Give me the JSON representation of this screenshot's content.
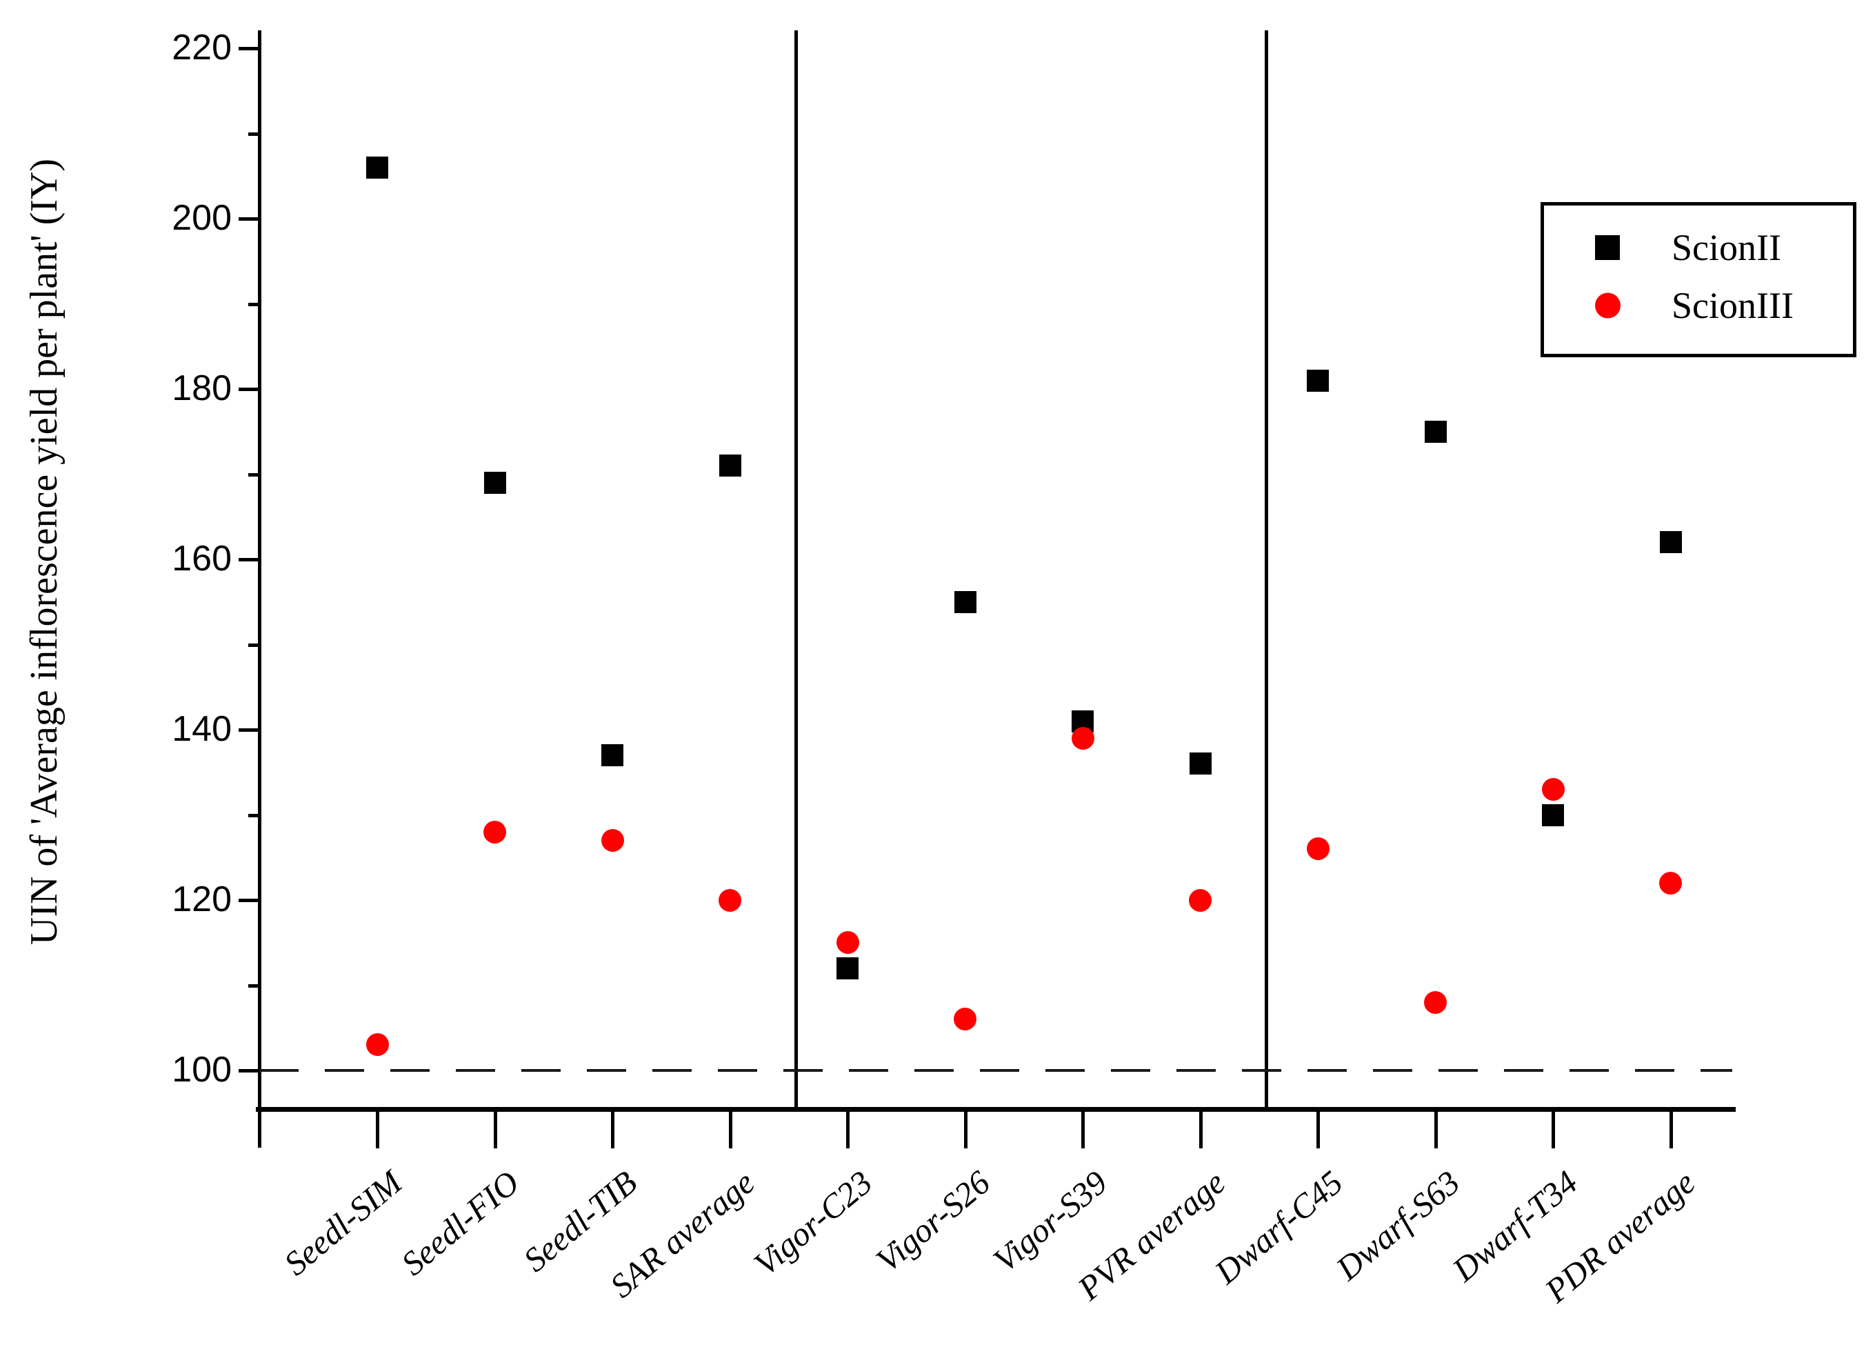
{
  "chart_data": {
    "type": "scatter",
    "title": "",
    "xlabel": "",
    "ylabel": "UIN of 'Average inflorescence yield per plant' (IY)",
    "ylim": [
      95,
      222
    ],
    "yticks_major": [
      100,
      120,
      140,
      160,
      180,
      200,
      220
    ],
    "yticks_minor": [
      110,
      130,
      150,
      170,
      190,
      210
    ],
    "reference_line_y": 100,
    "grid": false,
    "legend_position": "top-right",
    "categories": [
      "Seedl-SIM",
      "Seedl-FIO",
      "Seedl-TIB",
      "SAR average",
      "Vigor-C23",
      "Vigor-S26",
      "Vigor-S39",
      "PVR average",
      "Dwarf-C45",
      "Dwarf-S63",
      "Dwarf-T34",
      "PDR average"
    ],
    "group_dividers_after_index": [
      3,
      7
    ],
    "series": [
      {
        "name": "ScionII",
        "marker": "square",
        "color": "#000000",
        "values": [
          206,
          169,
          137,
          171,
          112,
          155,
          141,
          136,
          181,
          175,
          130,
          162
        ]
      },
      {
        "name": "ScionIII",
        "marker": "circle",
        "color": "#ff0000",
        "values": [
          103,
          128,
          127,
          120,
          115,
          106,
          139,
          120,
          126,
          108,
          133,
          122
        ]
      }
    ]
  },
  "legend": {
    "items": [
      {
        "label": "ScionII",
        "marker": "square",
        "color": "#000000"
      },
      {
        "label": "ScionIII",
        "marker": "circle",
        "color": "#ff0000"
      }
    ]
  },
  "axis": {
    "y_title": "UIN of 'Average inflorescence yield per plant' (IY)"
  }
}
